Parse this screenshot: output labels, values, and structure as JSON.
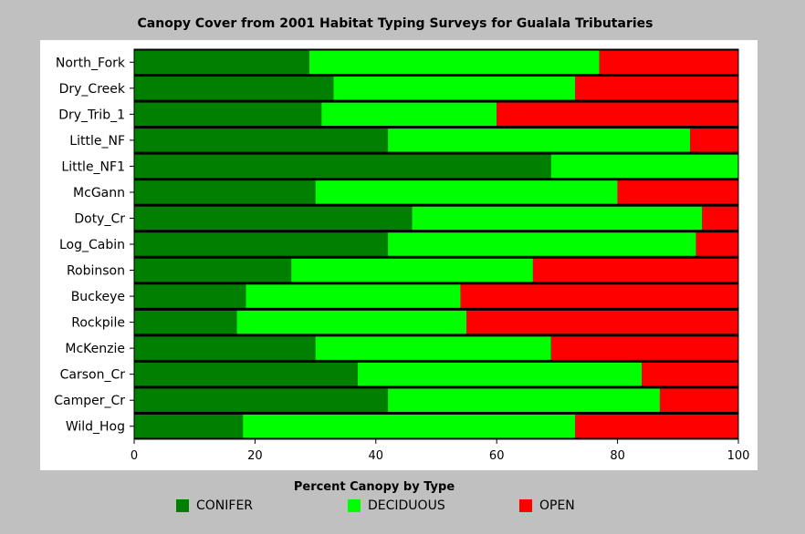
{
  "chart_data": {
    "type": "bar",
    "orientation": "horizontal",
    "stacked": true,
    "title": "Canopy Cover from 2001 Habitat Typing Surveys for Gualala Tributaries",
    "xlabel": "Percent Canopy by Type",
    "xlim": [
      0,
      100
    ],
    "xticks": [
      0,
      20,
      40,
      60,
      80,
      100
    ],
    "grid": false,
    "legend_position": "bottom",
    "categories": [
      "North_Fork",
      "Dry_Creek",
      "Dry_Trib_1",
      "Little_NF",
      "Little_NF1",
      "McGann",
      "Doty_Cr",
      "Log_Cabin",
      "Robinson",
      "Buckeye",
      "Rockpile",
      "McKenzie",
      "Carson_Cr",
      "Camper_Cr",
      "Wild_Hog"
    ],
    "series": [
      {
        "name": "CONIFER",
        "color": "#007f00",
        "values": [
          29,
          33,
          31,
          42,
          69,
          30,
          46,
          42,
          26,
          18.5,
          17,
          30,
          37,
          42,
          18
        ]
      },
      {
        "name": "DECIDUOUS",
        "color": "#00ff00",
        "values": [
          48,
          40,
          29,
          50,
          31,
          50,
          48,
          51,
          40,
          35.5,
          38,
          39,
          47,
          45,
          55
        ]
      },
      {
        "name": "OPEN",
        "color": "#ff0000",
        "values": [
          23,
          27,
          40,
          8,
          0,
          20,
          6,
          7,
          34,
          46,
          45,
          31,
          16,
          13,
          27
        ]
      }
    ]
  }
}
